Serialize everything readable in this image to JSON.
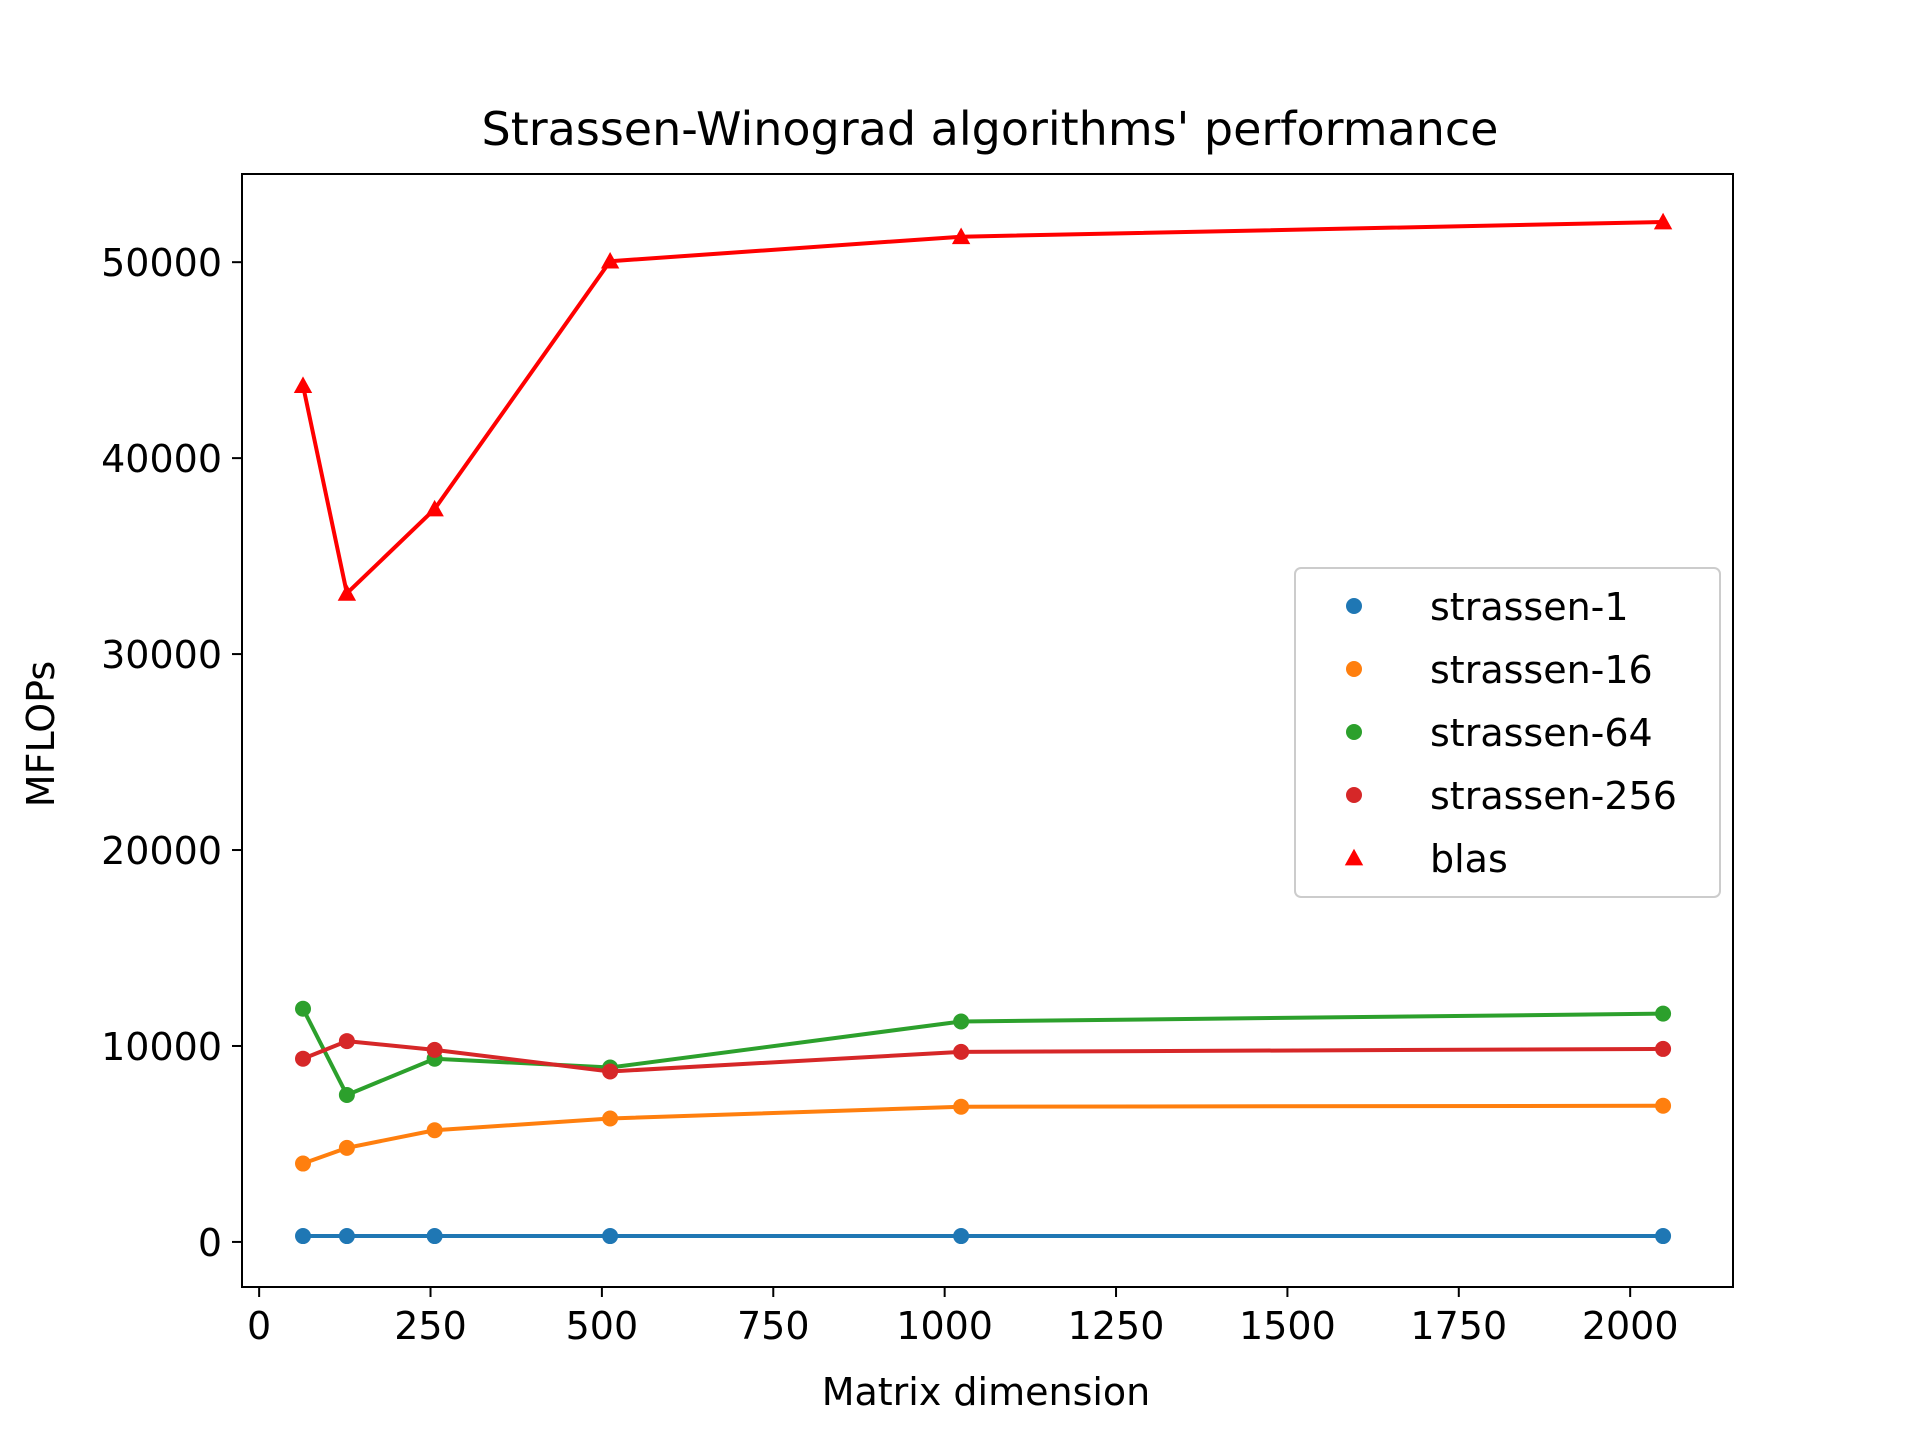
{
  "chart_data": {
    "type": "line",
    "title": "Strassen-Winograd algorithms' performance",
    "xlabel": "Matrix dimension",
    "ylabel": "MFLOPs",
    "xlim": [
      -25,
      2150
    ],
    "ylim": [
      -2300,
      54500
    ],
    "xticks": [
      0,
      250,
      500,
      750,
      1000,
      1250,
      1500,
      1750,
      2000
    ],
    "yticks": [
      0,
      10000,
      20000,
      30000,
      40000,
      50000
    ],
    "grid": false,
    "legend_position": "center-right",
    "x": [
      64,
      128,
      256,
      512,
      1024,
      2048
    ],
    "series": [
      {
        "name": "strassen-1",
        "color": "#1f77b4",
        "marker": "circle",
        "values": [
          300,
          300,
          300,
          300,
          300,
          300
        ]
      },
      {
        "name": "strassen-16",
        "color": "#ff7f0e",
        "marker": "circle",
        "values": [
          4000,
          4800,
          5700,
          6300,
          6900,
          6950
        ]
      },
      {
        "name": "strassen-64",
        "color": "#2ca02c",
        "marker": "circle",
        "values": [
          11900,
          7500,
          9350,
          8900,
          11250,
          11650
        ]
      },
      {
        "name": "strassen-256",
        "color": "#d62728",
        "marker": "circle",
        "values": [
          9350,
          10250,
          9800,
          8700,
          9700,
          9850
        ]
      },
      {
        "name": "blas",
        "color": "#ff0000",
        "marker": "triangle",
        "values": [
          43700,
          33100,
          37400,
          50050,
          51300,
          52050
        ]
      }
    ]
  }
}
